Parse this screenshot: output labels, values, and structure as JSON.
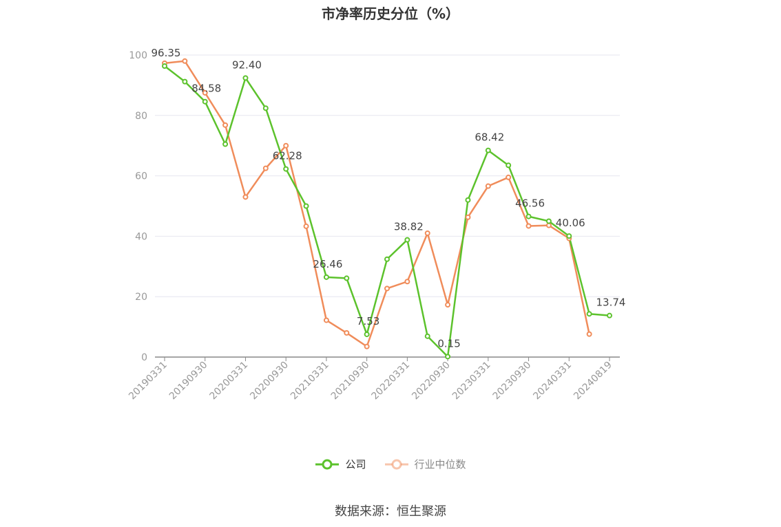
{
  "title": "市净率历史分位（%）",
  "source": "数据来源：恒生聚源",
  "colors": {
    "company": "#5cc22c",
    "industry": "#f08c5a",
    "grid": "#e6e6ef",
    "axis": "#999999"
  },
  "chart_data": {
    "type": "line",
    "title": "市净率历史分位（%）",
    "xlabel": "",
    "ylabel": "",
    "ylim": [
      0,
      100
    ],
    "yticks": [
      0,
      20,
      40,
      60,
      80,
      100
    ],
    "grid": true,
    "legend_position": "bottom",
    "x_tick_labels": [
      "20190331",
      "20190930",
      "20200331",
      "20200930",
      "20210331",
      "20210930",
      "20220331",
      "20220930",
      "20230331",
      "20230930",
      "20240331",
      "20240819"
    ],
    "x": [
      "20190331",
      "20190630",
      "20190930",
      "20191231",
      "20200331",
      "20200630",
      "20200930",
      "20201231",
      "20210331",
      "20210630",
      "20210930",
      "20211231",
      "20220331",
      "20220630",
      "20220930",
      "20221231",
      "20230331",
      "20230630",
      "20230930",
      "20231231",
      "20240331",
      "20240630",
      "20240819"
    ],
    "series": [
      {
        "name": "公司",
        "color": "#5cc22c",
        "values": [
          96.35,
          91.2,
          84.58,
          70.5,
          92.4,
          82.4,
          62.28,
          50.0,
          26.46,
          26.1,
          7.53,
          32.4,
          38.82,
          6.9,
          0.15,
          52.0,
          68.42,
          63.5,
          46.56,
          45.0,
          40.06,
          14.3,
          13.74
        ]
      },
      {
        "name": "行业中位数",
        "color": "#f08c5a",
        "values": [
          97.3,
          98.0,
          87.5,
          76.8,
          53.0,
          62.5,
          70.0,
          43.3,
          12.2,
          8.0,
          3.5,
          22.7,
          25.0,
          41.0,
          17.3,
          46.3,
          56.6,
          59.5,
          43.4,
          43.6,
          39.3,
          7.6,
          null
        ]
      }
    ],
    "data_labels": [
      {
        "index": 0,
        "text": "96.35"
      },
      {
        "index": 2,
        "text": "84.58"
      },
      {
        "index": 4,
        "text": "92.40"
      },
      {
        "index": 6,
        "text": "62.28"
      },
      {
        "index": 8,
        "text": "26.46"
      },
      {
        "index": 10,
        "text": "7.53"
      },
      {
        "index": 12,
        "text": "38.82"
      },
      {
        "index": 14,
        "text": "0.15"
      },
      {
        "index": 16,
        "text": "68.42"
      },
      {
        "index": 18,
        "text": "46.56"
      },
      {
        "index": 20,
        "text": "40.06"
      },
      {
        "index": 22,
        "text": "13.74"
      }
    ]
  }
}
